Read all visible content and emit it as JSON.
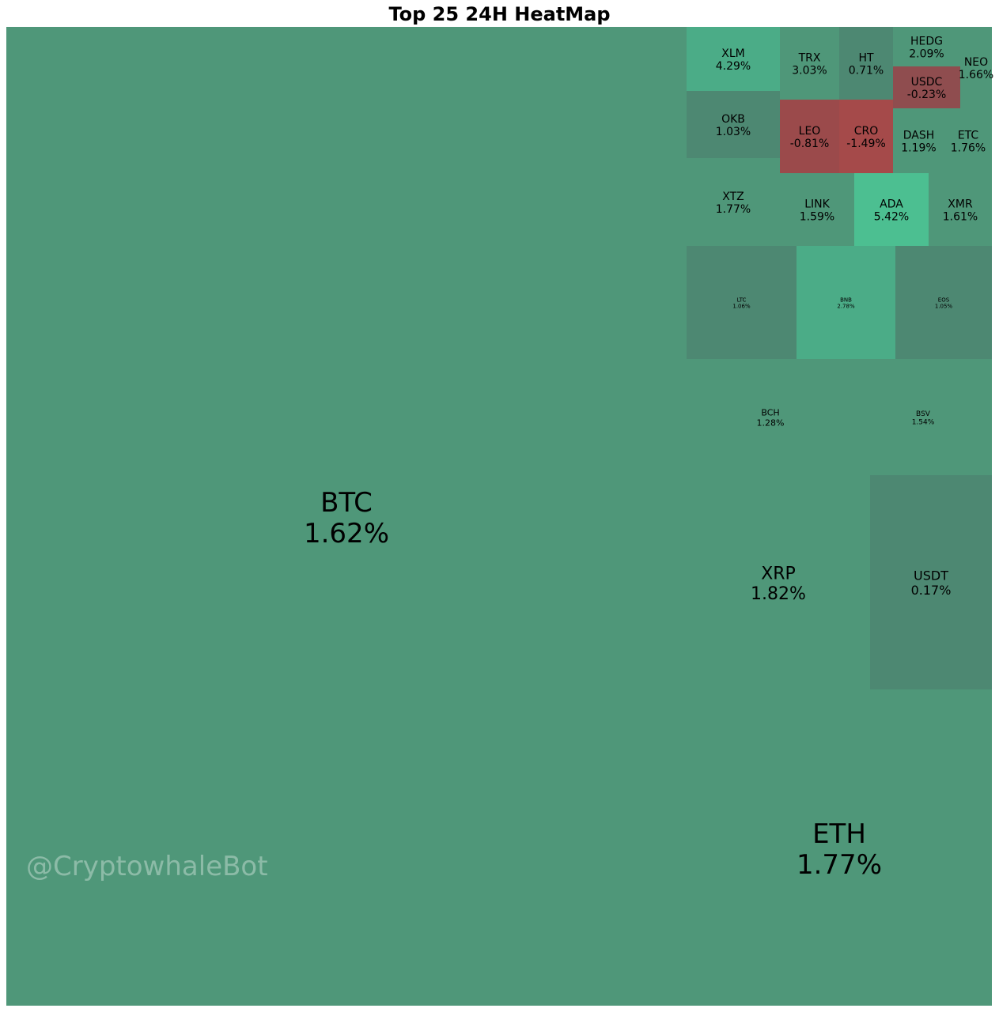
{
  "chart_data": {
    "type": "treemap",
    "title": "Top 25 24H HeatMap",
    "watermark": "@CryptowhaleBot",
    "colors": {
      "mild_positive": "#4f9779",
      "neutral": "#4d8872",
      "strong_positive": "#4bac87",
      "strongest_positive": "#4cbf91",
      "light_negative": "#8f4d4f",
      "negative": "#9b4a4b",
      "strong_negative": "#a54a4a"
    },
    "tiles": [
      {
        "symbol": "BTC",
        "change": "1.62%",
        "change_value": 1.62,
        "color": "mild_positive"
      },
      {
        "symbol": "ETH",
        "change": "1.77%",
        "change_value": 1.77,
        "color": "mild_positive"
      },
      {
        "symbol": "XRP",
        "change": "1.82%",
        "change_value": 1.82,
        "color": "mild_positive"
      },
      {
        "symbol": "USDT",
        "change": "0.17%",
        "change_value": 0.17,
        "color": "neutral"
      },
      {
        "symbol": "BCH",
        "change": "1.28%",
        "change_value": 1.28,
        "color": "mild_positive"
      },
      {
        "symbol": "BSV",
        "change": "1.54%",
        "change_value": 1.54,
        "color": "mild_positive"
      },
      {
        "symbol": "LTC",
        "change": "1.06%",
        "change_value": 1.06,
        "color": "neutral"
      },
      {
        "symbol": "BNB",
        "change": "2.78%",
        "change_value": 2.78,
        "color": "strong_positive"
      },
      {
        "symbol": "EOS",
        "change": "1.05%",
        "change_value": 1.05,
        "color": "neutral"
      },
      {
        "symbol": "XTZ",
        "change": "1.77%",
        "change_value": 1.77,
        "color": "mild_positive"
      },
      {
        "symbol": "LINK",
        "change": "1.59%",
        "change_value": 1.59,
        "color": "mild_positive"
      },
      {
        "symbol": "ADA",
        "change": "5.42%",
        "change_value": 5.42,
        "color": "strongest_positive"
      },
      {
        "symbol": "XMR",
        "change": "1.61%",
        "change_value": 1.61,
        "color": "mild_positive"
      },
      {
        "symbol": "XLM",
        "change": "4.29%",
        "change_value": 4.29,
        "color": "strong_positive"
      },
      {
        "symbol": "OKB",
        "change": "1.03%",
        "change_value": 1.03,
        "color": "neutral"
      },
      {
        "symbol": "TRX",
        "change": "3.03%",
        "change_value": 3.03,
        "color": "mild_positive"
      },
      {
        "symbol": "LEO",
        "change": "-0.81%",
        "change_value": -0.81,
        "color": "negative"
      },
      {
        "symbol": "HT",
        "change": "0.71%",
        "change_value": 0.71,
        "color": "neutral"
      },
      {
        "symbol": "CRO",
        "change": "-1.49%",
        "change_value": -1.49,
        "color": "strong_negative"
      },
      {
        "symbol": "HEDG",
        "change": "2.09%",
        "change_value": 2.09,
        "color": "mild_positive"
      },
      {
        "symbol": "USDC",
        "change": "-0.23%",
        "change_value": -0.23,
        "color": "light_negative"
      },
      {
        "symbol": "NEO",
        "change": "1.66%",
        "change_value": 1.66,
        "color": "mild_positive"
      },
      {
        "symbol": "DASH",
        "change": "1.19%",
        "change_value": 1.19,
        "color": "mild_positive"
      },
      {
        "symbol": "ETC",
        "change": "1.76%",
        "change_value": 1.76,
        "color": "mild_positive"
      }
    ]
  }
}
